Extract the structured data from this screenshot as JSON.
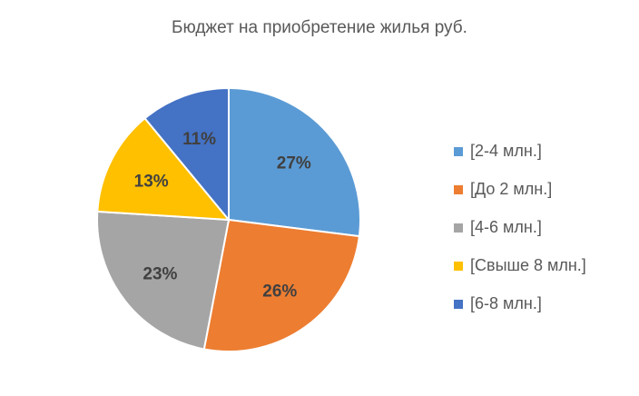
{
  "chart_data": {
    "type": "pie",
    "title": "Бюджет на приобретение жилья руб.",
    "legend_position": "right",
    "slices": [
      {
        "name": "[2-4 млн.]",
        "value": 27,
        "label": "27%",
        "color": "#5B9BD5"
      },
      {
        "name": "[До 2 млн.]",
        "value": 26,
        "label": "26%",
        "color": "#ED7D31"
      },
      {
        "name": "[4-6 млн.]",
        "value": 23,
        "label": "23%",
        "color": "#A5A5A5"
      },
      {
        "name": "[Свыше 8 млн.]",
        "value": 13,
        "label": "13%",
        "color": "#FFC000"
      },
      {
        "name": "[6-8 млн.]",
        "value": 11,
        "label": "11%",
        "color": "#4472C4"
      }
    ]
  }
}
